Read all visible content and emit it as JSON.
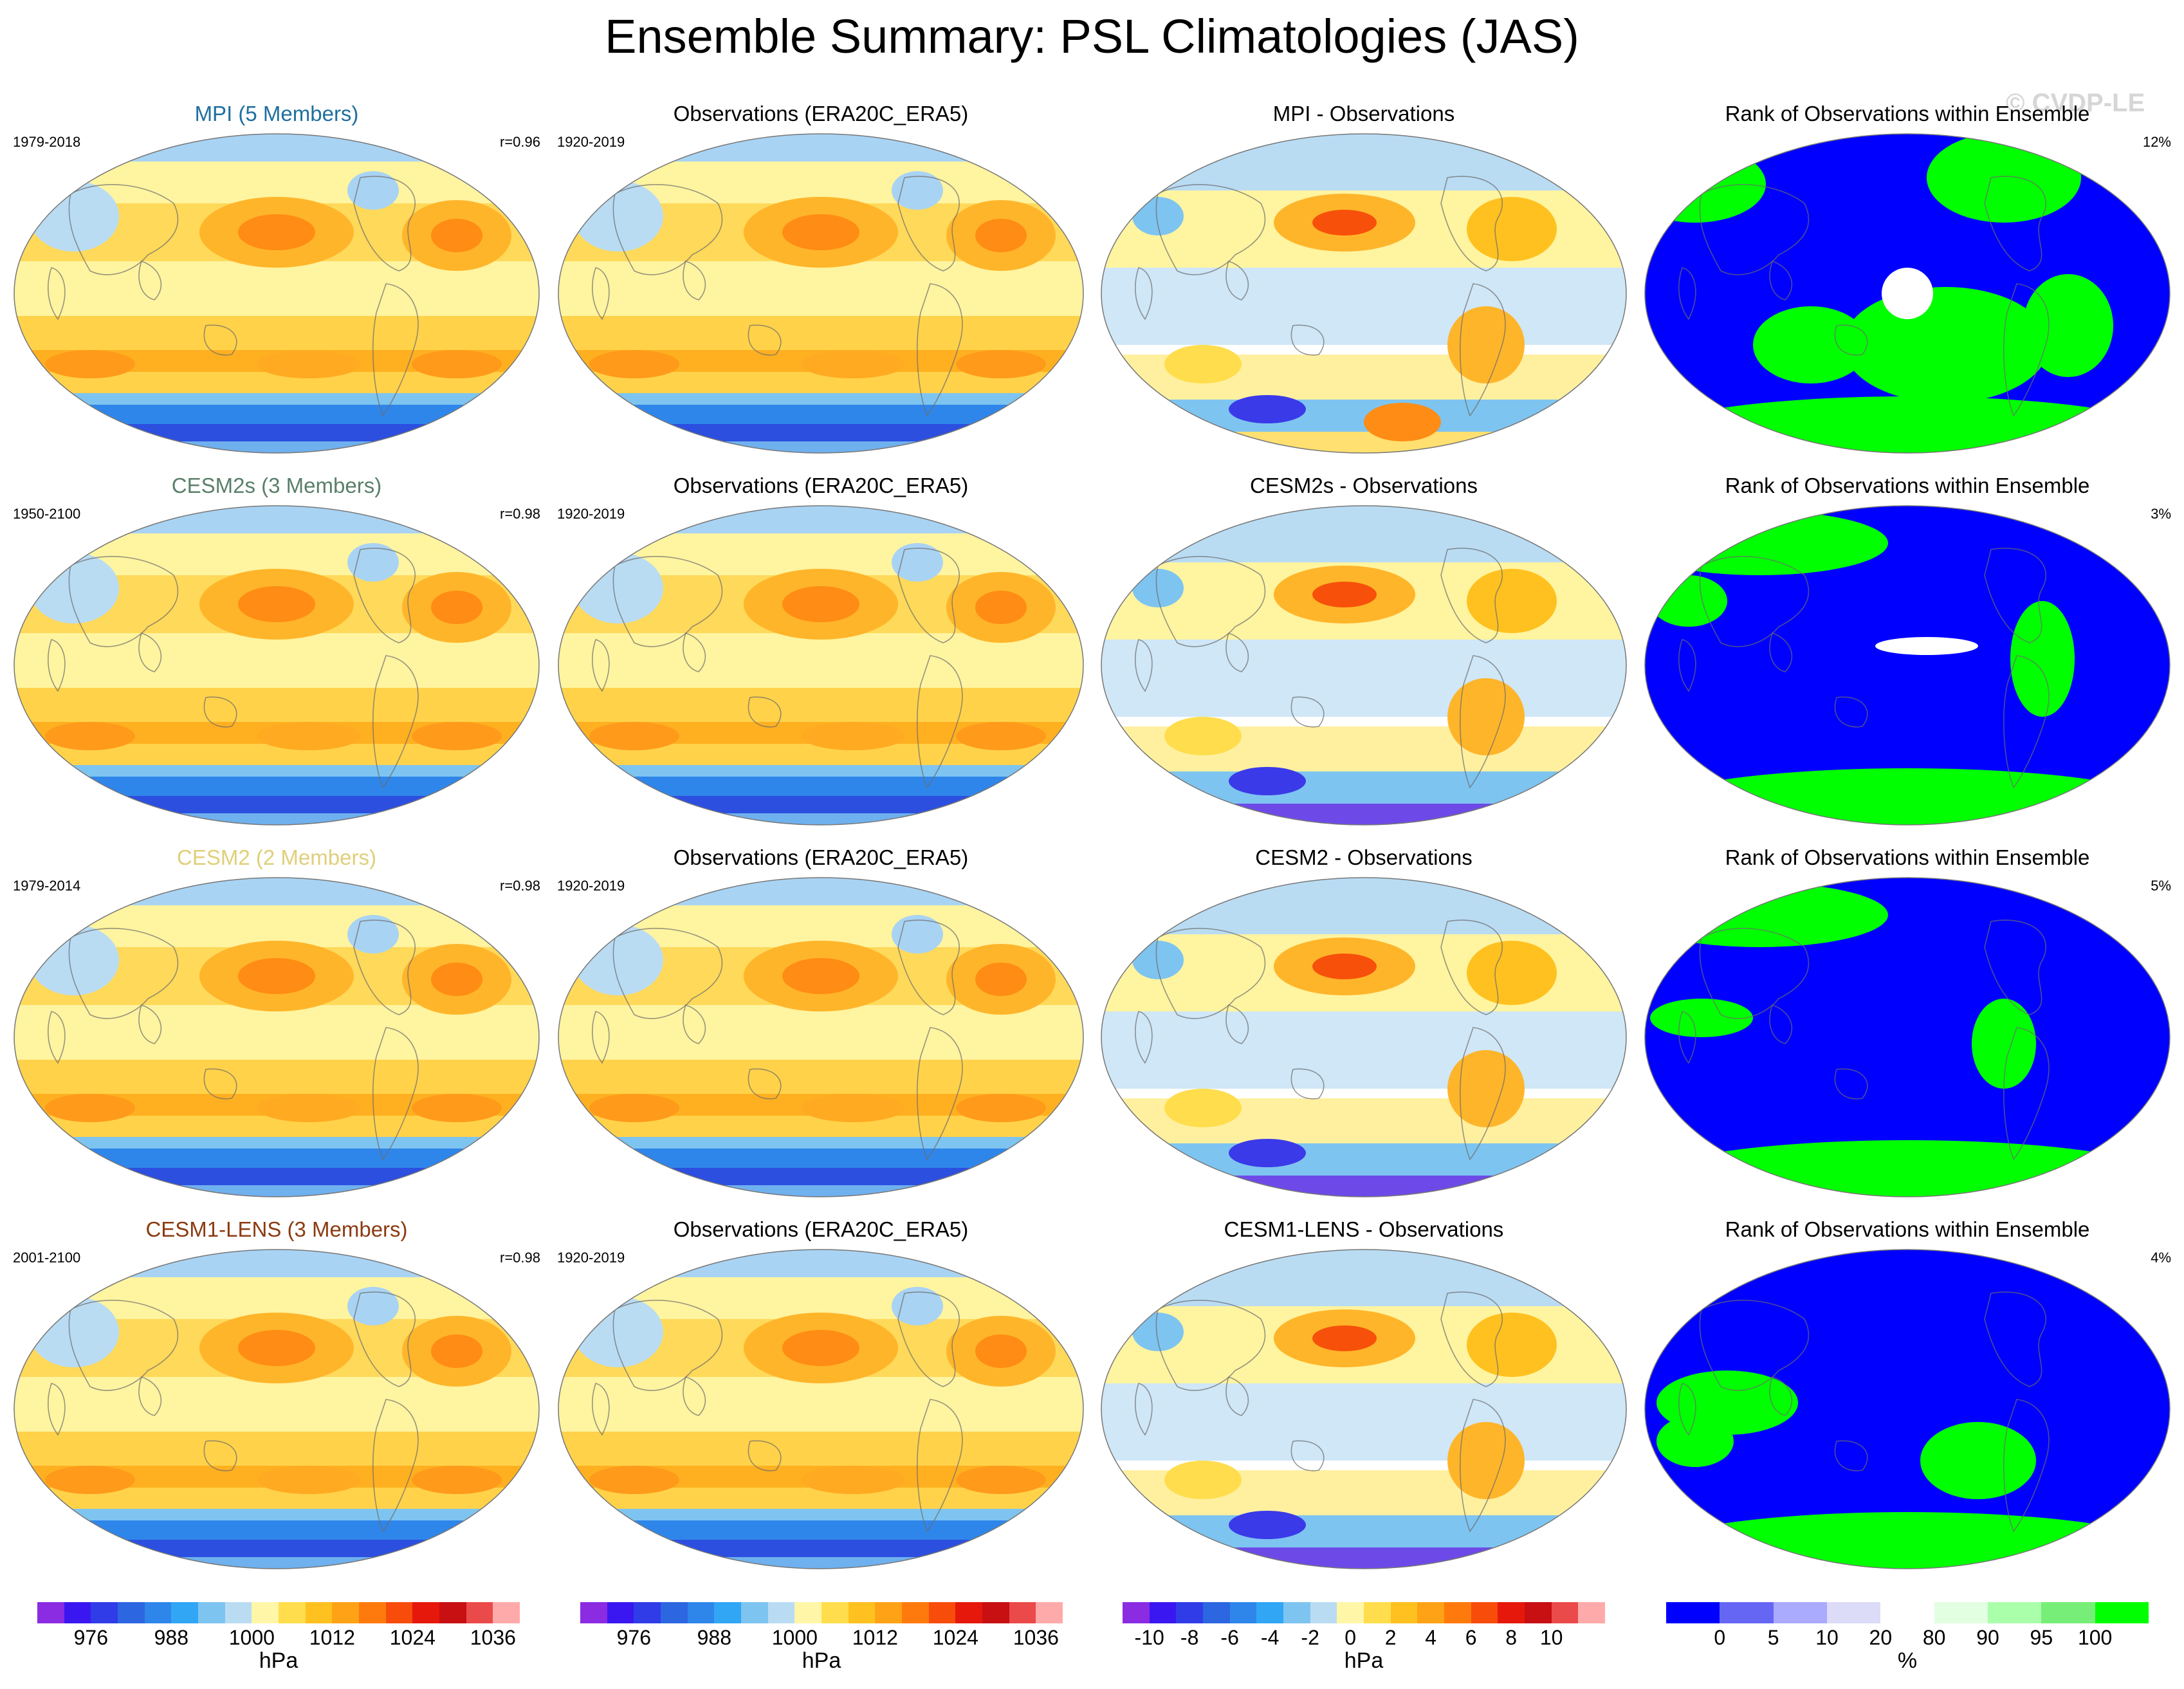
{
  "title": "Ensemble Summary: PSL Climatologies (JAS)",
  "watermark": "© CVDP-LE",
  "rows": [
    {
      "model": {
        "title": "MPI (5 Members)",
        "color": "#1f6f9f",
        "years": "1979-2018",
        "r": "r=0.96"
      },
      "obs": {
        "title": "Observations (ERA20C_ERA5)",
        "years": "1920-2019"
      },
      "diff": {
        "title": "MPI - Observations"
      },
      "rank": {
        "title": "Rank of Observations within Ensemble",
        "pct": "12%"
      }
    },
    {
      "model": {
        "title": "CESM2s (3 Members)",
        "color": "#5a7f6a",
        "years": "1950-2100",
        "r": "r=0.98"
      },
      "obs": {
        "title": "Observations (ERA20C_ERA5)",
        "years": "1920-2019"
      },
      "diff": {
        "title": "CESM2s - Observations"
      },
      "rank": {
        "title": "Rank of Observations within Ensemble",
        "pct": "3%"
      }
    },
    {
      "model": {
        "title": "CESM2 (2 Members)",
        "color": "#e0cf7a",
        "years": "1979-2014",
        "r": "r=0.98"
      },
      "obs": {
        "title": "Observations (ERA20C_ERA5)",
        "years": "1920-2019"
      },
      "diff": {
        "title": "CESM2 - Observations"
      },
      "rank": {
        "title": "Rank of Observations within Ensemble",
        "pct": "5%"
      }
    },
    {
      "model": {
        "title": "CESM1-LENS (3 Members)",
        "color": "#8b3b12",
        "years": "2001-2100",
        "r": "r=0.98"
      },
      "obs": {
        "title": "Observations (ERA20C_ERA5)",
        "years": "1920-2019"
      },
      "diff": {
        "title": "CESM1-LENS - Observations"
      },
      "rank": {
        "title": "Rank of Observations within Ensemble",
        "pct": "4%"
      }
    }
  ],
  "colorbars": [
    {
      "unit": "hPa",
      "ticks": [
        "976",
        "988",
        "1000",
        "1012",
        "1024",
        "1036"
      ],
      "colors": [
        "#8b2be2",
        "#3a17f0",
        "#2f3ce8",
        "#2c66e0",
        "#2f86ea",
        "#31a6f5",
        "#7ec4f0",
        "#b9dcf3",
        "#fff6a8",
        "#ffdd4c",
        "#ffc11f",
        "#ffa215",
        "#ff7a0d",
        "#f74c0a",
        "#e6180c",
        "#c80f12",
        "#ea4a4a",
        "#ffaaaa"
      ]
    },
    {
      "unit": "hPa",
      "ticks": [
        "976",
        "988",
        "1000",
        "1012",
        "1024",
        "1036"
      ],
      "colors": [
        "#8b2be2",
        "#3a17f0",
        "#2f3ce8",
        "#2c66e0",
        "#2f86ea",
        "#31a6f5",
        "#7ec4f0",
        "#b9dcf3",
        "#fff6a8",
        "#ffdd4c",
        "#ffc11f",
        "#ffa215",
        "#ff7a0d",
        "#f74c0a",
        "#e6180c",
        "#c80f12",
        "#ea4a4a",
        "#ffaaaa"
      ]
    },
    {
      "unit": "hPa",
      "ticks": [
        "-10",
        "-8",
        "-6",
        "-4",
        "-2",
        "0",
        "2",
        "4",
        "6",
        "8",
        "10"
      ],
      "colors": [
        "#8b2be2",
        "#3a17f0",
        "#2f3ce8",
        "#2c66e0",
        "#2f86ea",
        "#31a6f5",
        "#7ec4f0",
        "#b9dcf3",
        "#fff6a8",
        "#ffdd4c",
        "#ffc11f",
        "#ffa215",
        "#ff7a0d",
        "#f74c0a",
        "#e6180c",
        "#c80f12",
        "#ea4a4a",
        "#ffaaaa"
      ]
    },
    {
      "unit": "%",
      "ticks": [
        "0",
        "5",
        "10",
        "20",
        "80",
        "90",
        "95",
        "100"
      ],
      "colors": [
        "#0000ff",
        "#6666f5",
        "#aaaaff",
        "#dcdcf8",
        "#ffffff",
        "#e2ffe2",
        "#aaffaa",
        "#77ee77",
        "#00ff00"
      ]
    }
  ]
}
